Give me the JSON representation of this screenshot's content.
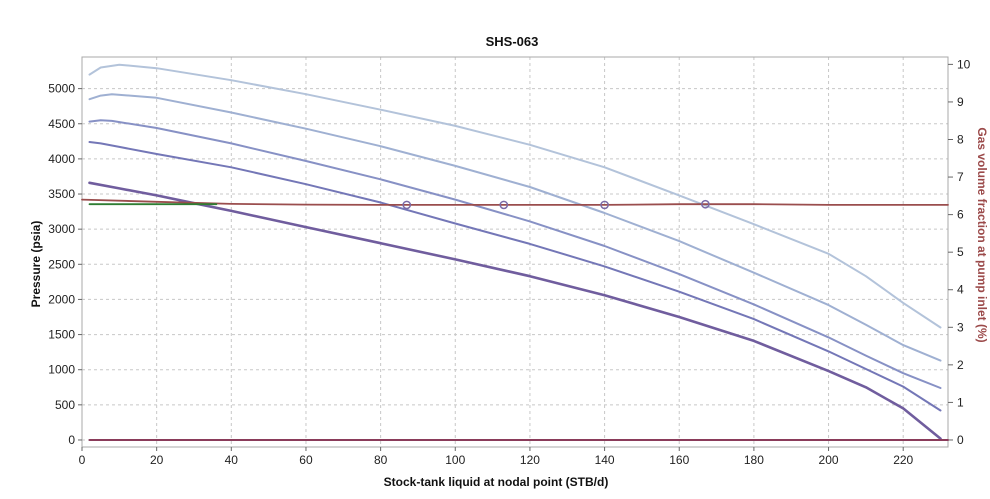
{
  "chart_data": {
    "type": "line",
    "title": "SHS-063",
    "xlabel": "Stock-tank liquid at nodal point (STB/d)",
    "ylabel": "Pressure (psia)",
    "y2label": "Gas volume fraction at pump inlet (%)",
    "xlim": [
      0,
      232
    ],
    "ylim": [
      -100,
      5450
    ],
    "y2lim": [
      0,
      10
    ],
    "xticks": [
      0,
      20,
      40,
      60,
      80,
      100,
      120,
      140,
      160,
      180,
      200,
      220
    ],
    "yticks": [
      0,
      500,
      1000,
      1500,
      2000,
      2500,
      3000,
      3500,
      4000,
      4500,
      5000
    ],
    "y2ticks": [
      0,
      1,
      2,
      3,
      4,
      5,
      6,
      7,
      8,
      9,
      10
    ],
    "grid": true,
    "colors": {
      "pump_curve_1": "#b3c3da",
      "pump_curve_2": "#9fb0d2",
      "pump_curve_3": "#8791c5",
      "pump_curve_4": "#7477b7",
      "inflow_curve": "#705d9e",
      "outflow_line": "#9a4d4d",
      "intake_line": "#2e7d32",
      "gvf_line": "#8a3b5a",
      "grid": "#c8c8c8",
      "marker": "#7a6aa6"
    },
    "series": [
      {
        "key": "pump_curve_1",
        "x": [
          2,
          5,
          10,
          20,
          40,
          60,
          80,
          100,
          120,
          140,
          160,
          180,
          200,
          210,
          220,
          230
        ],
        "y": [
          5200,
          5300,
          5340,
          5290,
          5120,
          4920,
          4700,
          4470,
          4200,
          3880,
          3480,
          3070,
          2650,
          2330,
          1950,
          1600
        ]
      },
      {
        "key": "pump_curve_2",
        "x": [
          2,
          5,
          8,
          20,
          40,
          60,
          80,
          100,
          120,
          140,
          160,
          180,
          200,
          210,
          220,
          230
        ],
        "y": [
          4850,
          4900,
          4920,
          4870,
          4660,
          4430,
          4180,
          3900,
          3600,
          3230,
          2830,
          2380,
          1920,
          1640,
          1350,
          1130
        ]
      },
      {
        "key": "pump_curve_3",
        "x": [
          2,
          5,
          8,
          20,
          40,
          60,
          80,
          100,
          120,
          140,
          160,
          180,
          200,
          210,
          220,
          230
        ],
        "y": [
          4530,
          4550,
          4540,
          4440,
          4220,
          3970,
          3710,
          3420,
          3110,
          2760,
          2360,
          1930,
          1460,
          1200,
          950,
          740
        ]
      },
      {
        "key": "pump_curve_4",
        "x": [
          2,
          5,
          10,
          20,
          40,
          60,
          80,
          100,
          120,
          140,
          160,
          180,
          200,
          210,
          220,
          230
        ],
        "y": [
          4240,
          4220,
          4170,
          4070,
          3880,
          3640,
          3380,
          3080,
          2790,
          2470,
          2110,
          1720,
          1260,
          1010,
          760,
          420
        ]
      },
      {
        "key": "inflow_curve",
        "x": [
          2,
          10,
          20,
          30,
          40,
          60,
          80,
          100,
          120,
          140,
          160,
          180,
          200,
          210,
          220,
          230
        ],
        "y": [
          3660,
          3580,
          3480,
          3370,
          3260,
          3030,
          2800,
          2570,
          2330,
          2060,
          1750,
          1410,
          980,
          750,
          450,
          20
        ]
      },
      {
        "key": "outflow_line",
        "x": [
          0,
          20,
          40,
          60,
          80,
          100,
          120,
          140,
          160,
          180,
          200,
          232
        ],
        "y": [
          3420,
          3390,
          3360,
          3350,
          3345,
          3345,
          3345,
          3345,
          3355,
          3355,
          3345,
          3345
        ]
      },
      {
        "key": "intake_line",
        "x": [
          2,
          36
        ],
        "y": [
          3355,
          3355
        ]
      },
      {
        "key": "gvf_line",
        "x": [
          2,
          232
        ],
        "y": [
          0,
          0
        ]
      }
    ],
    "markers": [
      {
        "x": 87,
        "y": 3345
      },
      {
        "x": 113,
        "y": 3345
      },
      {
        "x": 140,
        "y": 3345
      },
      {
        "x": 167,
        "y": 3355
      }
    ]
  }
}
